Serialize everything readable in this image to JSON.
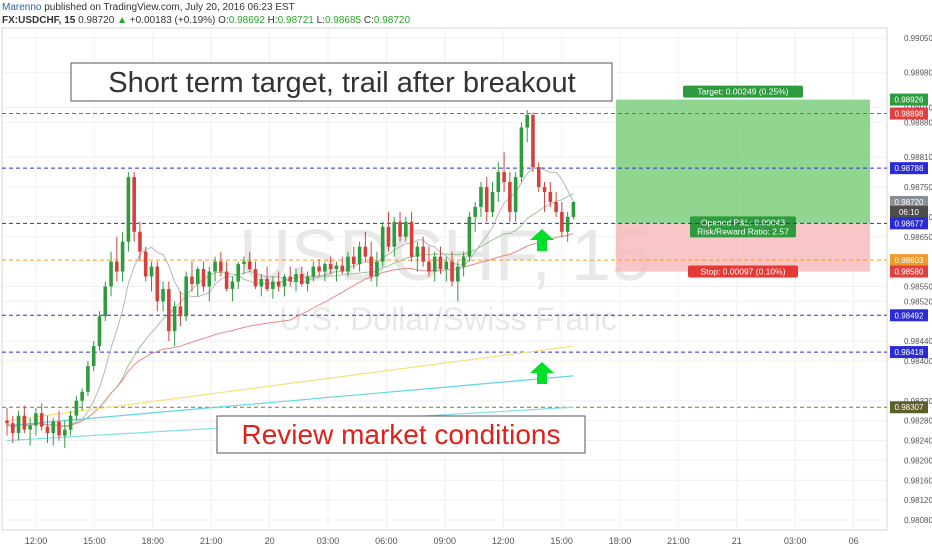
{
  "header": {
    "author": "Marenno",
    "published": "published on TradingView.com, July 20, 2016 06:23 EST",
    "symbol": "FX:USDCHF, 15",
    "last": "0.98720",
    "change_arrow": "▲",
    "change": "+0.00183 (+0.19%)",
    "o_label": "O:",
    "o_value": "0.98692",
    "h_label": "H:",
    "h_value": "0.98721",
    "l_label": "L:",
    "l_value": "0.98685",
    "c_label": "C:",
    "c_value": "0.98720"
  },
  "watermark": {
    "symbol": "USDCHF, 15",
    "name": "U.S. Dollar/Swiss Franc"
  },
  "annotations": {
    "top_text": "Short term target, trail after breakout",
    "bottom_text": "Review market conditions"
  },
  "position_tool": {
    "target_label": "Target: 0.00249 (0.25%)",
    "pnl_label": "Opened P&L: 0.00043",
    "rr_label": "Risk/Reward Ratio: 2.57",
    "stop_label": "Stop: 0.00097 (0.10%)"
  },
  "colors": {
    "up": "#2e9b3e",
    "down": "#d6403b",
    "target_fill": "#7ccf7c",
    "stop_fill": "#f6b8b8",
    "arrow": "#00e02a",
    "red_line": "#e04040",
    "blue_line": "#2b2bd6",
    "orange_line": "#f09a2a",
    "olive_line": "#7a7a3a"
  },
  "chart_data": {
    "type": "candlestick",
    "symbol": "FX:USDCHF, 15",
    "x_ticks": [
      "12:00",
      "15:00",
      "18:00",
      "21:00",
      "20",
      "03:00",
      "06:00",
      "09:00",
      "12:00",
      "15:00",
      "18:00",
      "21:00",
      "21",
      "03:00",
      "06"
    ],
    "y_ticks": [
      "0.99050",
      "0.98980",
      "0.98910",
      "0.98880",
      "0.98810",
      "0.98750",
      "0.98690",
      "0.98650",
      "0.98550",
      "0.98520",
      "0.98440",
      "0.98400",
      "0.98320",
      "0.98280",
      "0.98240",
      "0.98200",
      "0.98160",
      "0.98120",
      "0.98080"
    ],
    "ylim": [
      0.9806,
      0.9907
    ],
    "price_tags": [
      {
        "value": "0.98926",
        "price": 0.98926,
        "color": "#2e9b3e"
      },
      {
        "value": "0.98898",
        "price": 0.98898,
        "color": "#e04040"
      },
      {
        "value": "0.98788",
        "price": 0.98788,
        "color": "#2b2bd6"
      },
      {
        "value": "0.98720",
        "price": 0.9872,
        "color": "#8a8f96"
      },
      {
        "value": "06:10",
        "price": 0.987,
        "color": "#4d4d4d"
      },
      {
        "value": "0.98677",
        "price": 0.98677,
        "color": "#2b2bd6"
      },
      {
        "value": "0.98603",
        "price": 0.98603,
        "color": "#f09a2a"
      },
      {
        "value": "0.98580",
        "price": 0.9858,
        "color": "#e04040"
      },
      {
        "value": "0.98492",
        "price": 0.98492,
        "color": "#2b2bd6"
      },
      {
        "value": "0.98418",
        "price": 0.98418,
        "color": "#2b2bd6"
      },
      {
        "value": "0.98307",
        "price": 0.98307,
        "color": "#5e5e2a"
      }
    ],
    "horizontal_lines": [
      {
        "price": 0.98898,
        "color": "#e04040"
      },
      {
        "price": 0.98788,
        "color": "#2b2bd6"
      },
      {
        "price": 0.98677,
        "color": "#2b2bd6"
      },
      {
        "price": 0.98603,
        "color": "#f09a2a"
      },
      {
        "price": 0.98492,
        "color": "#2b2bd6"
      },
      {
        "price": 0.98418,
        "color": "#2b2bd6"
      },
      {
        "price": 0.98307,
        "color": "#7a7a3a"
      }
    ],
    "position": {
      "entry": 0.98677,
      "target": 0.98926,
      "stop": 0.9858
    },
    "ohlc": [
      [
        0.9828,
        0.98305,
        0.9825,
        0.98275
      ],
      [
        0.98275,
        0.9829,
        0.98235,
        0.98255
      ],
      [
        0.98255,
        0.983,
        0.9824,
        0.9829
      ],
      [
        0.9829,
        0.9831,
        0.98255,
        0.98262
      ],
      [
        0.98262,
        0.98285,
        0.9823,
        0.9827
      ],
      [
        0.9827,
        0.98305,
        0.9825,
        0.98295
      ],
      [
        0.98295,
        0.98315,
        0.9826,
        0.98268
      ],
      [
        0.98268,
        0.9829,
        0.98235,
        0.98255
      ],
      [
        0.98255,
        0.98285,
        0.9823,
        0.98278
      ],
      [
        0.98278,
        0.983,
        0.9824,
        0.9825
      ],
      [
        0.9825,
        0.9828,
        0.98225,
        0.98262
      ],
      [
        0.98262,
        0.983,
        0.9825,
        0.9829
      ],
      [
        0.9829,
        0.9833,
        0.9828,
        0.9832
      ],
      [
        0.9832,
        0.98345,
        0.983,
        0.98338
      ],
      [
        0.98338,
        0.984,
        0.9833,
        0.9839
      ],
      [
        0.9839,
        0.9844,
        0.9838,
        0.9843
      ],
      [
        0.9843,
        0.985,
        0.9842,
        0.9849
      ],
      [
        0.9849,
        0.9856,
        0.9848,
        0.9855
      ],
      [
        0.9855,
        0.9862,
        0.9853,
        0.986
      ],
      [
        0.986,
        0.9865,
        0.9856,
        0.9858
      ],
      [
        0.9858,
        0.9866,
        0.9856,
        0.9864
      ],
      [
        0.9864,
        0.9878,
        0.9862,
        0.9877
      ],
      [
        0.9877,
        0.9878,
        0.9864,
        0.9866
      ],
      [
        0.9866,
        0.9868,
        0.986,
        0.9862
      ],
      [
        0.9862,
        0.9863,
        0.9856,
        0.9857
      ],
      [
        0.9857,
        0.986,
        0.9854,
        0.9859
      ],
      [
        0.9859,
        0.986,
        0.985,
        0.9852
      ],
      [
        0.9852,
        0.9856,
        0.985,
        0.98545
      ],
      [
        0.98545,
        0.9856,
        0.9844,
        0.9846
      ],
      [
        0.9846,
        0.9852,
        0.9843,
        0.9851
      ],
      [
        0.9851,
        0.9854,
        0.9847,
        0.9849
      ],
      [
        0.9849,
        0.9858,
        0.9848,
        0.9857
      ],
      [
        0.9857,
        0.986,
        0.9854,
        0.98555
      ],
      [
        0.98555,
        0.9859,
        0.9853,
        0.98585
      ],
      [
        0.98585,
        0.986,
        0.9854,
        0.9855
      ],
      [
        0.9855,
        0.9859,
        0.9852,
        0.9858
      ],
      [
        0.9858,
        0.9861,
        0.9856,
        0.986
      ],
      [
        0.986,
        0.9862,
        0.9857,
        0.9858
      ],
      [
        0.9858,
        0.986,
        0.9854,
        0.98545
      ],
      [
        0.98545,
        0.9857,
        0.9852,
        0.9856
      ],
      [
        0.9856,
        0.986,
        0.98545,
        0.98595
      ],
      [
        0.98595,
        0.9861,
        0.98575,
        0.986
      ],
      [
        0.986,
        0.9862,
        0.9858,
        0.98585
      ],
      [
        0.98585,
        0.986,
        0.98545,
        0.9855
      ],
      [
        0.9855,
        0.98575,
        0.9853,
        0.98565
      ],
      [
        0.98565,
        0.9859,
        0.9854,
        0.98545
      ],
      [
        0.98545,
        0.9857,
        0.98525,
        0.9856
      ],
      [
        0.9856,
        0.9858,
        0.9854,
        0.9855
      ],
      [
        0.9855,
        0.98575,
        0.9853,
        0.9857
      ],
      [
        0.9857,
        0.9859,
        0.9855,
        0.9856
      ],
      [
        0.9856,
        0.98585,
        0.9854,
        0.98575
      ],
      [
        0.98575,
        0.9859,
        0.9855,
        0.98555
      ],
      [
        0.98555,
        0.9858,
        0.9854,
        0.9857
      ],
      [
        0.9857,
        0.986,
        0.9856,
        0.9859
      ],
      [
        0.9859,
        0.98605,
        0.9857,
        0.9858
      ],
      [
        0.9858,
        0.986,
        0.9856,
        0.98595
      ],
      [
        0.98595,
        0.9861,
        0.98575,
        0.98585
      ],
      [
        0.98585,
        0.986,
        0.9856,
        0.98592
      ],
      [
        0.98592,
        0.9861,
        0.98575,
        0.9858
      ],
      [
        0.9858,
        0.9862,
        0.9857,
        0.9861
      ],
      [
        0.9861,
        0.9863,
        0.98585,
        0.98595
      ],
      [
        0.98595,
        0.9864,
        0.9858,
        0.9863
      ],
      [
        0.9863,
        0.9866,
        0.986,
        0.9861
      ],
      [
        0.9861,
        0.9864,
        0.9856,
        0.9857
      ],
      [
        0.9857,
        0.9862,
        0.9855,
        0.986
      ],
      [
        0.986,
        0.9868,
        0.9859,
        0.9867
      ],
      [
        0.9867,
        0.987,
        0.9862,
        0.9863
      ],
      [
        0.9863,
        0.9869,
        0.9861,
        0.9868
      ],
      [
        0.9868,
        0.987,
        0.9864,
        0.9865
      ],
      [
        0.9865,
        0.9869,
        0.9864,
        0.9868
      ],
      [
        0.9868,
        0.987,
        0.986,
        0.9861
      ],
      [
        0.9861,
        0.9864,
        0.9858,
        0.9863
      ],
      [
        0.9863,
        0.9865,
        0.9859,
        0.986
      ],
      [
        0.986,
        0.9863,
        0.9857,
        0.9858
      ],
      [
        0.9858,
        0.9862,
        0.9856,
        0.9861
      ],
      [
        0.9861,
        0.9863,
        0.98575,
        0.98585
      ],
      [
        0.98585,
        0.9861,
        0.9856,
        0.986
      ],
      [
        0.986,
        0.9862,
        0.9855,
        0.9856
      ],
      [
        0.9856,
        0.986,
        0.9852,
        0.9859
      ],
      [
        0.9859,
        0.9862,
        0.9857,
        0.9861
      ],
      [
        0.9861,
        0.987,
        0.986,
        0.9869
      ],
      [
        0.9869,
        0.9872,
        0.9866,
        0.9871
      ],
      [
        0.9871,
        0.9876,
        0.9869,
        0.9875
      ],
      [
        0.9875,
        0.9877,
        0.9868,
        0.987
      ],
      [
        0.987,
        0.9876,
        0.9869,
        0.9874
      ],
      [
        0.9874,
        0.988,
        0.9872,
        0.9878
      ],
      [
        0.9878,
        0.9882,
        0.9874,
        0.9876
      ],
      [
        0.9876,
        0.9878,
        0.9868,
        0.987
      ],
      [
        0.987,
        0.9878,
        0.9868,
        0.9877
      ],
      [
        0.9877,
        0.9888,
        0.9876,
        0.9887
      ],
      [
        0.9887,
        0.98905,
        0.9884,
        0.98895
      ],
      [
        0.98895,
        0.989,
        0.9878,
        0.9879
      ],
      [
        0.9879,
        0.988,
        0.9874,
        0.9875
      ],
      [
        0.9875,
        0.9876,
        0.987,
        0.9874
      ],
      [
        0.9874,
        0.9876,
        0.9871,
        0.9872
      ],
      [
        0.9872,
        0.9874,
        0.9869,
        0.987
      ],
      [
        0.987,
        0.9872,
        0.9865,
        0.9866
      ],
      [
        0.9866,
        0.987,
        0.9864,
        0.9869
      ],
      [
        0.9869,
        0.98721,
        0.98685,
        0.9872
      ]
    ]
  }
}
